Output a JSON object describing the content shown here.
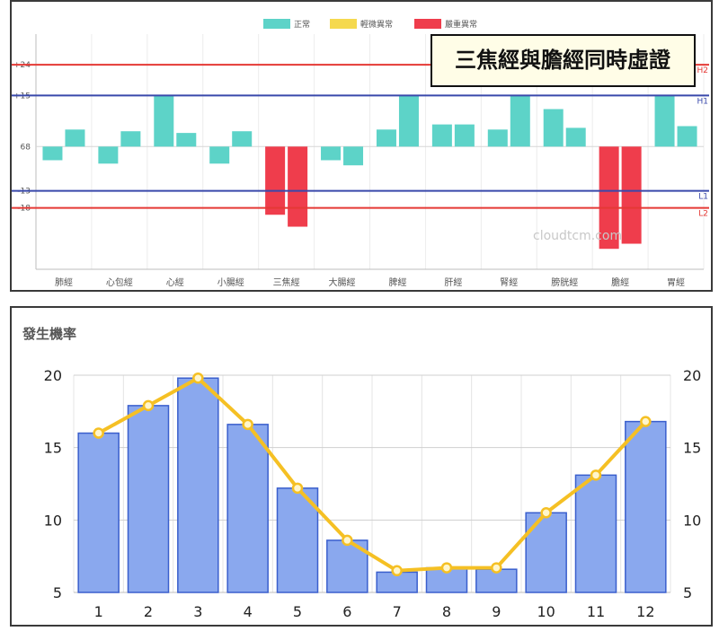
{
  "chart_data": [
    {
      "type": "bar",
      "title": "三焦經與膽經同時虛證",
      "watermark": "cloudtcm.com",
      "legend": {
        "placement": "top-center",
        "items": [
          {
            "label": "正常",
            "color": "#5dd3c8"
          },
          {
            "label": "輕微異常",
            "color": "#f5d94e"
          },
          {
            "label": "嚴重異常",
            "color": "#ef3d4c"
          }
        ]
      },
      "baseline_label": "68",
      "ticks": [
        {
          "label": "+24",
          "value": 24
        },
        {
          "label": "+15",
          "value": 15
        },
        {
          "label": "68",
          "value": 0
        },
        {
          "label": "-13",
          "value": -13
        },
        {
          "label": "-18",
          "value": -18
        }
      ],
      "ylim": [
        -36,
        33
      ],
      "ref_lines": [
        {
          "label": "H2",
          "value": 24,
          "color": "#e53935"
        },
        {
          "label": "H1",
          "value": 15,
          "color": "#3949ab"
        },
        {
          "label": "L1",
          "value": -13,
          "color": "#3949ab"
        },
        {
          "label": "L2",
          "value": -18,
          "color": "#e53935"
        }
      ],
      "categories": [
        "肺經",
        "心包經",
        "心經",
        "小腸經",
        "三焦經",
        "大腸經",
        "脾經",
        "肝經",
        "腎經",
        "膀胱經",
        "膽經",
        "胃經"
      ],
      "series": [
        {
          "values": [
            -4,
            -5,
            15,
            -5,
            -20,
            -4,
            5,
            6.5,
            5,
            11,
            -30,
            15
          ]
        },
        {
          "values": [
            5,
            4.5,
            4,
            4.5,
            -23.5,
            -5.5,
            15,
            6.5,
            15,
            5.5,
            -28.5,
            6
          ]
        }
      ],
      "status": [
        [
          "normal",
          "normal",
          "normal",
          "normal",
          "severe",
          "normal",
          "normal",
          "normal",
          "normal",
          "normal",
          "severe",
          "normal"
        ],
        [
          "normal",
          "normal",
          "normal",
          "normal",
          "severe",
          "normal",
          "normal",
          "normal",
          "normal",
          "normal",
          "severe",
          "normal"
        ]
      ],
      "grid": true
    },
    {
      "type": "bar+line",
      "title": "發生機率",
      "categories": [
        "1",
        "2",
        "3",
        "4",
        "5",
        "6",
        "7",
        "8",
        "9",
        "10",
        "11",
        "12"
      ],
      "bar_values": [
        16,
        17.9,
        19.8,
        16.6,
        12.2,
        8.6,
        6.4,
        6.7,
        6.6,
        10.5,
        13.1,
        16.8
      ],
      "line_values": [
        16,
        17.9,
        19.8,
        16.6,
        12.2,
        8.6,
        6.5,
        6.7,
        6.7,
        10.5,
        13.1,
        16.8
      ],
      "ylim": [
        5,
        20
      ],
      "yticks": [
        5,
        10,
        15,
        20
      ],
      "bar_color": "#8aa8ee",
      "bar_border": "#3a5fcd",
      "line_color": "#f5c024",
      "grid": true
    }
  ]
}
